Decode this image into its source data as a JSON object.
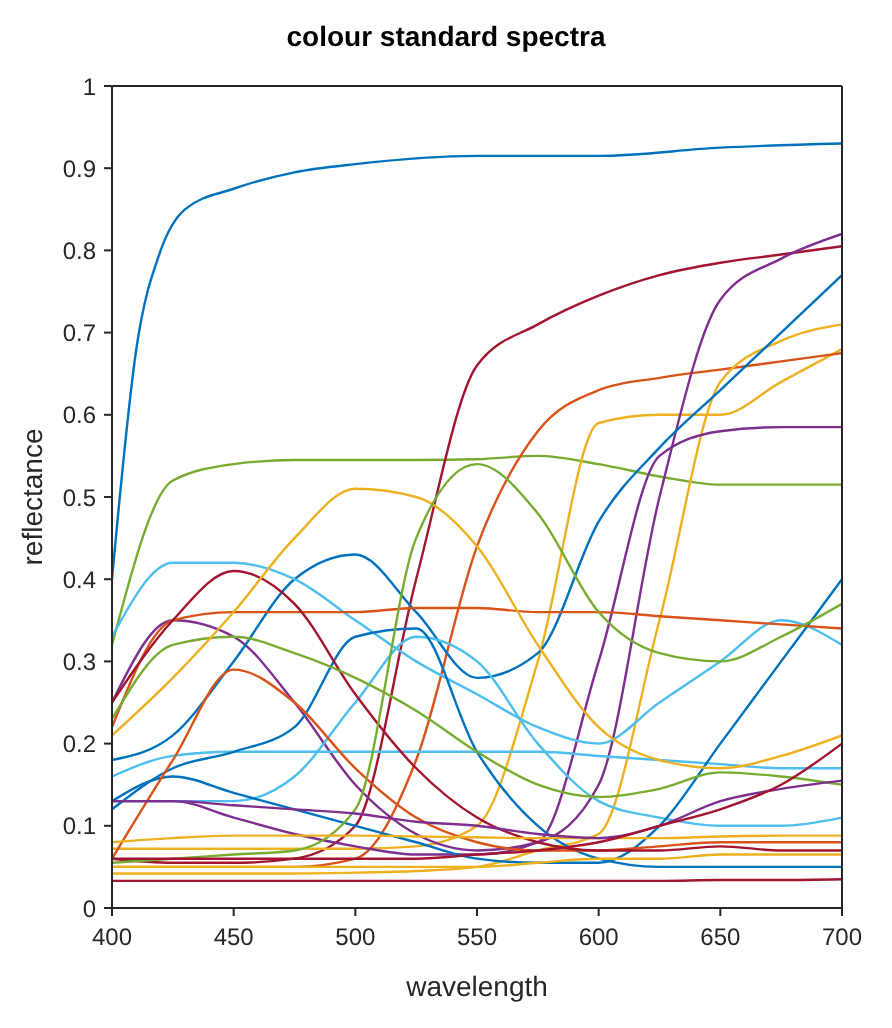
{
  "chart_data": {
    "type": "line",
    "title": "colour standard spectra",
    "xlabel": "wavelength",
    "ylabel": "reflectance",
    "x": [
      400,
      425,
      450,
      475,
      500,
      525,
      550,
      575,
      600,
      625,
      650,
      675,
      700
    ],
    "xlim": [
      400,
      700
    ],
    "xticks": [
      400,
      450,
      500,
      550,
      600,
      650,
      700
    ],
    "ylim": [
      0,
      1
    ],
    "yticks": [
      0,
      0.1,
      0.2,
      0.3,
      0.4,
      0.5,
      0.6,
      0.7,
      0.8,
      0.9,
      1
    ],
    "grid": false,
    "marker": "none",
    "line_style": "solid",
    "series": [
      {
        "color": "#0072bd",
        "x": [
          400,
          410,
          420,
          430,
          450,
          475,
          500,
          550,
          600,
          650,
          700
        ],
        "values": [
          0.4,
          0.68,
          0.8,
          0.85,
          0.875,
          0.895,
          0.905,
          0.915,
          0.915,
          0.925,
          0.93
        ]
      },
      {
        "color": "#77ac30",
        "values": [
          0.32,
          0.52,
          0.54,
          0.545,
          0.545,
          0.545,
          0.546,
          0.55,
          0.54,
          0.525,
          0.515,
          0.515,
          0.515
        ]
      },
      {
        "color": "#a2142f",
        "values": [
          0.06,
          0.055,
          0.055,
          0.06,
          0.1,
          0.4,
          0.66,
          0.71,
          0.745,
          0.77,
          0.785,
          0.795,
          0.805
        ]
      },
      {
        "color": "#edb120",
        "values": [
          0.072,
          0.072,
          0.072,
          0.072,
          0.072,
          0.075,
          0.1,
          0.3,
          0.59,
          0.6,
          0.6,
          0.64,
          0.68
        ]
      },
      {
        "color": "#d95319",
        "values": [
          0.05,
          0.05,
          0.05,
          0.05,
          0.06,
          0.18,
          0.44,
          0.58,
          0.63,
          0.645,
          0.655,
          0.665,
          0.675
        ]
      },
      {
        "color": "#edb120",
        "values": [
          0.042,
          0.042,
          0.042,
          0.042,
          0.043,
          0.045,
          0.05,
          0.07,
          0.09,
          0.35,
          0.64,
          0.69,
          0.71
        ]
      },
      {
        "color": "#7e2f8e",
        "values": [
          0.25,
          0.35,
          0.33,
          0.25,
          0.15,
          0.09,
          0.07,
          0.08,
          0.15,
          0.5,
          0.74,
          0.79,
          0.82
        ]
      },
      {
        "color": "#7e2f8e",
        "values": [
          0.13,
          0.13,
          0.11,
          0.09,
          0.075,
          0.065,
          0.065,
          0.08,
          0.3,
          0.55,
          0.58,
          0.585,
          0.585
        ]
      },
      {
        "color": "#0072bd",
        "values": [
          0.18,
          0.21,
          0.3,
          0.4,
          0.43,
          0.36,
          0.28,
          0.31,
          0.47,
          0.56,
          0.63,
          0.7,
          0.77
        ]
      },
      {
        "color": "#4dbeee",
        "values": [
          0.33,
          0.42,
          0.42,
          0.4,
          0.35,
          0.3,
          0.26,
          0.22,
          0.2,
          0.25,
          0.3,
          0.35,
          0.32
        ]
      },
      {
        "color": "#4dbeee",
        "values": [
          0.13,
          0.13,
          0.13,
          0.16,
          0.25,
          0.33,
          0.3,
          0.2,
          0.13,
          0.11,
          0.1,
          0.1,
          0.11
        ]
      },
      {
        "color": "#4dbeee",
        "values": [
          0.16,
          0.185,
          0.19,
          0.19,
          0.19,
          0.19,
          0.19,
          0.19,
          0.185,
          0.18,
          0.175,
          0.17,
          0.17
        ]
      },
      {
        "color": "#0072bd",
        "values": [
          0.12,
          0.17,
          0.19,
          0.22,
          0.33,
          0.34,
          0.19,
          0.1,
          0.06,
          0.05,
          0.05,
          0.05,
          0.05
        ]
      },
      {
        "color": "#0072bd",
        "values": [
          0.13,
          0.16,
          0.14,
          0.12,
          0.1,
          0.08,
          0.06,
          0.055,
          0.055,
          0.1,
          0.2,
          0.3,
          0.4
        ]
      },
      {
        "color": "#d95319",
        "values": [
          0.22,
          0.35,
          0.36,
          0.36,
          0.36,
          0.365,
          0.365,
          0.36,
          0.36,
          0.355,
          0.35,
          0.345,
          0.34
        ]
      },
      {
        "color": "#d95319",
        "values": [
          0.06,
          0.18,
          0.29,
          0.25,
          0.17,
          0.11,
          0.08,
          0.07,
          0.07,
          0.075,
          0.08,
          0.08,
          0.08
        ]
      },
      {
        "color": "#a2142f",
        "values": [
          0.25,
          0.35,
          0.41,
          0.37,
          0.26,
          0.17,
          0.11,
          0.08,
          0.07,
          0.07,
          0.075,
          0.07,
          0.07
        ]
      },
      {
        "color": "#77ac30",
        "values": [
          0.23,
          0.32,
          0.33,
          0.31,
          0.28,
          0.24,
          0.19,
          0.15,
          0.135,
          0.145,
          0.165,
          0.16,
          0.15
        ]
      },
      {
        "color": "#edb120",
        "values": [
          0.21,
          0.28,
          0.36,
          0.45,
          0.51,
          0.5,
          0.44,
          0.32,
          0.22,
          0.18,
          0.17,
          0.185,
          0.21
        ]
      },
      {
        "color": "#77ac30",
        "values": [
          0.055,
          0.06,
          0.065,
          0.07,
          0.12,
          0.45,
          0.54,
          0.48,
          0.36,
          0.31,
          0.3,
          0.33,
          0.37
        ]
      },
      {
        "color": "#edb120",
        "values": [
          0.08,
          0.085,
          0.088,
          0.088,
          0.088,
          0.087,
          0.086,
          0.085,
          0.085,
          0.085,
          0.087,
          0.088,
          0.088
        ]
      },
      {
        "color": "#7e2f8e",
        "values": [
          0.13,
          0.13,
          0.125,
          0.12,
          0.115,
          0.105,
          0.1,
          0.09,
          0.085,
          0.1,
          0.13,
          0.145,
          0.155
        ]
      },
      {
        "color": "#a2142f",
        "values": [
          0.033,
          0.033,
          0.033,
          0.033,
          0.033,
          0.033,
          0.033,
          0.033,
          0.033,
          0.033,
          0.034,
          0.034,
          0.035
        ]
      },
      {
        "color": "#a2142f",
        "values": [
          0.06,
          0.06,
          0.06,
          0.06,
          0.06,
          0.06,
          0.065,
          0.07,
          0.08,
          0.1,
          0.12,
          0.15,
          0.2
        ]
      },
      {
        "color": "#edb120",
        "values": [
          0.05,
          0.05,
          0.05,
          0.05,
          0.05,
          0.05,
          0.05,
          0.055,
          0.06,
          0.06,
          0.065,
          0.065,
          0.065
        ]
      }
    ]
  }
}
